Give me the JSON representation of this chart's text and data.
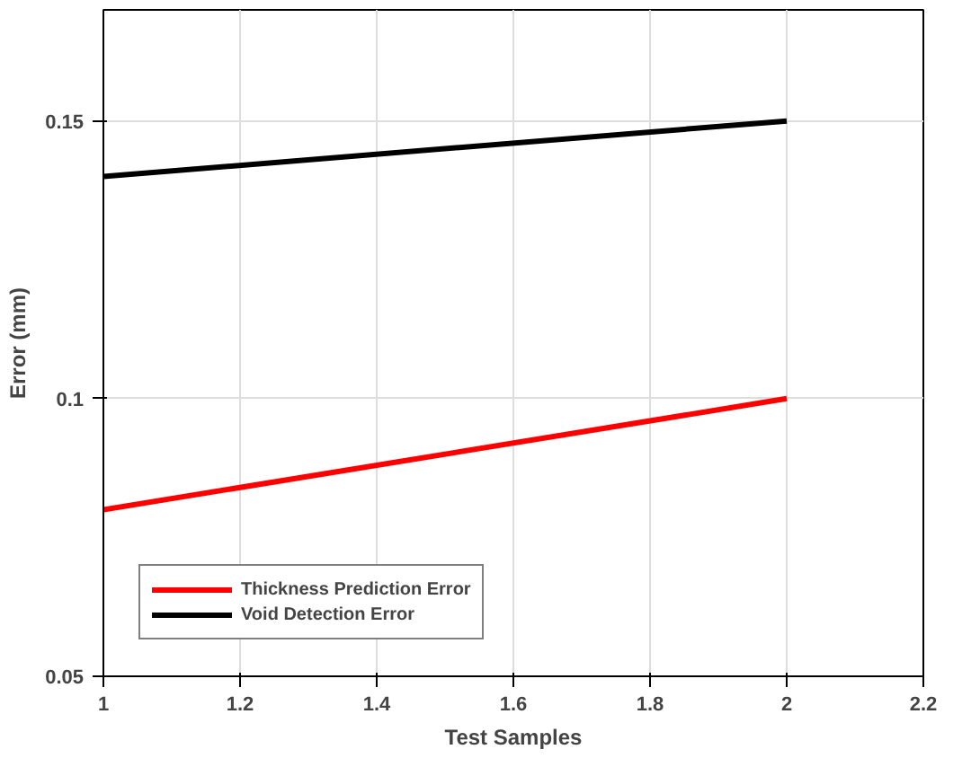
{
  "chart_data": {
    "type": "line",
    "xlabel": "Test Samples",
    "ylabel": "Error (mm)",
    "x": [
      1,
      2
    ],
    "series": [
      {
        "name": "Thickness Prediction Error",
        "color": "#ff0000",
        "values": [
          0.08,
          0.1
        ]
      },
      {
        "name": "Void Detection Error",
        "color": "#000000",
        "values": [
          0.14,
          0.15
        ]
      }
    ],
    "xlim": [
      1,
      2.2
    ],
    "xticks": [
      1,
      1.2,
      1.4,
      1.6,
      1.8,
      2,
      2.2
    ],
    "ylim": [
      0.05,
      0.17
    ],
    "yticks": [
      0.05,
      0.1,
      0.15
    ],
    "grid": true,
    "legend": "bottom left",
    "line_style": "solid"
  }
}
